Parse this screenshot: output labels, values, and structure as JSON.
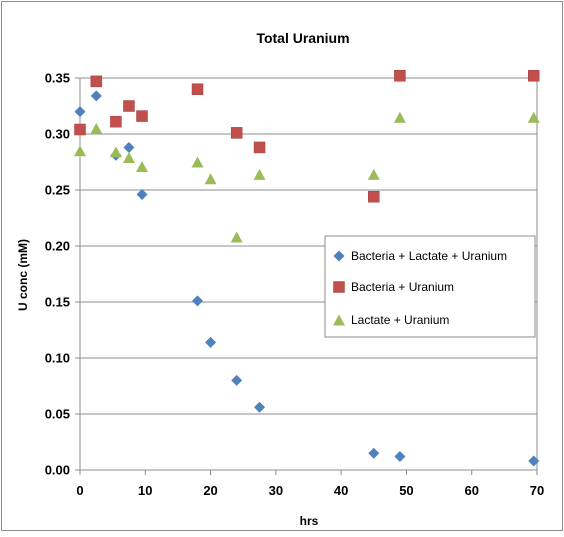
{
  "chart_data": {
    "type": "scatter",
    "title": "Total Uranium",
    "xlabel": "hrs",
    "ylabel": "U conc (mM)",
    "xlim": [
      0,
      70
    ],
    "ylim": [
      0,
      0.35
    ],
    "xticks": [
      0,
      10,
      20,
      30,
      40,
      50,
      60,
      70
    ],
    "yticks": [
      0.0,
      0.05,
      0.1,
      0.15,
      0.2,
      0.25,
      0.3,
      0.35
    ],
    "xtick_labels": [
      "0",
      "10",
      "20",
      "30",
      "40",
      "50",
      "60",
      "70"
    ],
    "ytick_labels": [
      "0.00",
      "0.05",
      "0.10",
      "0.15",
      "0.20",
      "0.25",
      "0.30",
      "0.35"
    ],
    "grid": "horizontal",
    "legend_position": "center-right",
    "series": [
      {
        "name": "Bacteria + Lactate + Uranium",
        "marker": "diamond",
        "color": "#4F81BD",
        "points": [
          {
            "x": 0,
            "y": 0.32
          },
          {
            "x": 2.5,
            "y": 0.334
          },
          {
            "x": 5.5,
            "y": 0.281
          },
          {
            "x": 7.5,
            "y": 0.288
          },
          {
            "x": 9.5,
            "y": 0.246
          },
          {
            "x": 18,
            "y": 0.151
          },
          {
            "x": 20,
            "y": 0.114
          },
          {
            "x": 24,
            "y": 0.08
          },
          {
            "x": 27.5,
            "y": 0.056
          },
          {
            "x": 45,
            "y": 0.015
          },
          {
            "x": 49,
            "y": 0.012
          },
          {
            "x": 69.5,
            "y": 0.008
          }
        ]
      },
      {
        "name": "Bacteria + Uranium",
        "marker": "square",
        "color": "#C0504D",
        "points": [
          {
            "x": 0,
            "y": 0.304
          },
          {
            "x": 2.5,
            "y": 0.347
          },
          {
            "x": 5.5,
            "y": 0.311
          },
          {
            "x": 7.5,
            "y": 0.325
          },
          {
            "x": 9.5,
            "y": 0.316
          },
          {
            "x": 18,
            "y": 0.34
          },
          {
            "x": 24,
            "y": 0.301
          },
          {
            "x": 27.5,
            "y": 0.288
          },
          {
            "x": 45,
            "y": 0.244
          },
          {
            "x": 49,
            "y": 0.352
          },
          {
            "x": 69.5,
            "y": 0.352
          }
        ]
      },
      {
        "name": "Lactate + Uranium",
        "marker": "triangle",
        "color": "#9BBB59",
        "points": [
          {
            "x": 0,
            "y": 0.285
          },
          {
            "x": 2.5,
            "y": 0.305
          },
          {
            "x": 5.5,
            "y": 0.284
          },
          {
            "x": 7.5,
            "y": 0.279
          },
          {
            "x": 9.5,
            "y": 0.271
          },
          {
            "x": 18,
            "y": 0.275
          },
          {
            "x": 20,
            "y": 0.26
          },
          {
            "x": 24,
            "y": 0.208
          },
          {
            "x": 27.5,
            "y": 0.264
          },
          {
            "x": 45,
            "y": 0.264
          },
          {
            "x": 49,
            "y": 0.315
          },
          {
            "x": 69.5,
            "y": 0.315
          }
        ]
      }
    ]
  }
}
